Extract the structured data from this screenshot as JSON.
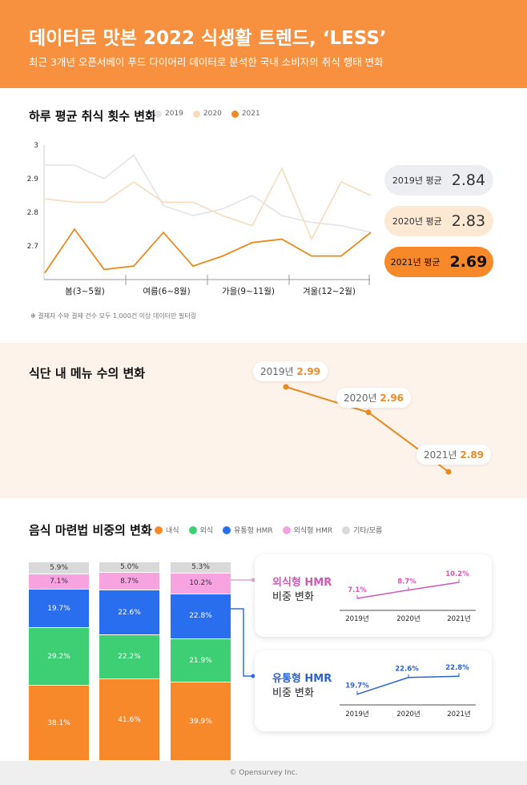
{
  "header": {
    "title": "데이터로 맛본 2022 식생활 트렌드, ‘LESS’",
    "subtitle": "최근 3개년 오픈서베이 푸드 다이어리 데이터로 분석한 국내 소비자의 취식 행태 변화"
  },
  "colors": {
    "header": "#f8913f",
    "c2019": "#e3e4e8",
    "c2020": "#f6dcbd",
    "c2021": "#e88a1e",
    "home": "#f7892a",
    "eatout": "#3ecf74",
    "retail_hmr": "#2a6ef0",
    "restaurant_hmr": "#f7a3e0",
    "other": "#d9d9d9"
  },
  "chart_data": [
    {
      "type": "line",
      "title": "하루 평균 취식 횟수 변화",
      "ylim": [
        2.6,
        3.0
      ],
      "yticks": [
        "3",
        "2.9",
        "2.8",
        "2.7"
      ],
      "grid": false,
      "legend": "top",
      "x_groups": [
        "봄(3~5월)",
        "여름(6~8월)",
        "가을(9~11월)",
        "겨울(12~2월)"
      ],
      "x": [
        "3",
        "4",
        "5",
        "6",
        "7",
        "8",
        "9",
        "10",
        "11",
        "12",
        "1",
        "2"
      ],
      "series": [
        {
          "name": "2019",
          "values": [
            2.94,
            2.94,
            2.9,
            2.97,
            2.82,
            2.79,
            2.81,
            2.85,
            2.79,
            2.77,
            2.76,
            2.74
          ]
        },
        {
          "name": "2020",
          "values": [
            2.84,
            2.83,
            2.83,
            2.89,
            2.83,
            2.83,
            2.79,
            2.76,
            2.93,
            2.72,
            2.89,
            2.85
          ]
        },
        {
          "name": "2021",
          "values": [
            2.62,
            2.75,
            2.63,
            2.64,
            2.74,
            2.64,
            2.67,
            2.71,
            2.72,
            2.67,
            2.67,
            2.74
          ]
        }
      ],
      "averages": [
        {
          "label": "2019년 평균",
          "value": "2.84"
        },
        {
          "label": "2020년 평균",
          "value": "2.83"
        },
        {
          "label": "2021년 평균",
          "value": "2.69"
        }
      ],
      "footnote": "결제자 수와 결제 건수 모두 1,000건 이상 데이터만 필터링"
    },
    {
      "type": "line",
      "title": "식단 내 메뉴 수의 변화",
      "x": [
        "2019년",
        "2020년",
        "2021년"
      ],
      "values": [
        2.99,
        2.96,
        2.89
      ],
      "labels": [
        "2.99",
        "2.96",
        "2.89"
      ]
    },
    {
      "type": "bar",
      "stacked": true,
      "title": "음식 마련법 비중의 변화",
      "categories": [
        "2019",
        "2020",
        "2021"
      ],
      "series": [
        {
          "name": "내식",
          "values": [
            38.1,
            41.6,
            39.9
          ],
          "labels": [
            "38.1%",
            "41.6%",
            "39.9%"
          ]
        },
        {
          "name": "외식",
          "values": [
            29.2,
            22.2,
            21.9
          ],
          "labels": [
            "29.2%",
            "22.2%",
            "21.9%"
          ]
        },
        {
          "name": "유통형 HMR",
          "values": [
            19.7,
            22.6,
            22.8
          ],
          "labels": [
            "19.7%",
            "22.6%",
            "22.8%"
          ]
        },
        {
          "name": "외식형 HMR",
          "values": [
            7.1,
            8.7,
            10.2
          ],
          "labels": [
            "7.1%",
            "8.7%",
            "10.2%"
          ]
        },
        {
          "name": "기타/모름",
          "values": [
            5.9,
            5.0,
            5.3
          ],
          "labels": [
            "5.9%",
            "5.0%",
            "5.3%"
          ]
        }
      ]
    },
    {
      "type": "line",
      "title": "외식형 HMR",
      "subtitle": "비중 변화",
      "x": [
        "2019년",
        "2020년",
        "2021년"
      ],
      "values": [
        7.1,
        8.7,
        10.2
      ],
      "labels": [
        "7.1%",
        "8.7%",
        "10.2%"
      ]
    },
    {
      "type": "line",
      "title": "유통형 HMR",
      "subtitle": "비중 변화",
      "x": [
        "2019년",
        "2020년",
        "2021년"
      ],
      "values": [
        19.7,
        22.6,
        22.8
      ],
      "labels": [
        "19.7%",
        "22.6%",
        "22.8%"
      ]
    }
  ],
  "footer": "© Opensurvey Inc."
}
